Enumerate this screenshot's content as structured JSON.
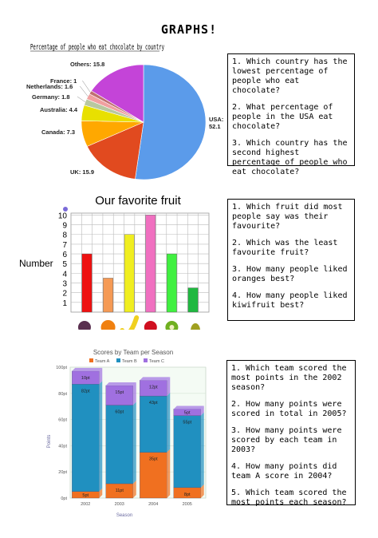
{
  "page": {
    "title": "GRAPHS!"
  },
  "chart_data": [
    {
      "type": "pie",
      "title": "Percentage of people who eat chocolate by country",
      "slices": [
        {
          "label": "USA",
          "value": 52.1,
          "display": "USA: 52.1",
          "color": "#5b9bea"
        },
        {
          "label": "UK",
          "value": 15.9,
          "display": "UK: 15.9",
          "color": "#e14a1f"
        },
        {
          "label": "Canada",
          "value": 7.3,
          "display": "Canada: 7.3",
          "color": "#ffa800"
        },
        {
          "label": "Australia",
          "value": 4.4,
          "display": "Australia: 4.4",
          "color": "#e8e000"
        },
        {
          "label": "Germany",
          "value": 1.8,
          "display": "Germany: 1.8",
          "color": "#b8c8a0"
        },
        {
          "label": "Netherlands",
          "value": 1.6,
          "display": "Netherlands: 1.6",
          "color": "#f0a0a0"
        },
        {
          "label": "France",
          "value": 1,
          "display": "France: 1",
          "color": "#c07070"
        },
        {
          "label": "Others",
          "value": 15.8,
          "display": "Others: 15.8",
          "color": "#c444d8"
        }
      ]
    },
    {
      "type": "bar",
      "title": "Our favorite fruit",
      "xlabel": "",
      "ylabel": "Number",
      "ylim": [
        0,
        10
      ],
      "yticks": [
        "1",
        "2",
        "3",
        "4",
        "5",
        "6",
        "7",
        "8",
        "9",
        "10"
      ],
      "categories": [
        "plum",
        "orange",
        "banana",
        "strawberry",
        "kiwifruit",
        "pear"
      ],
      "values": [
        6,
        3.5,
        8,
        10,
        6,
        2.5
      ],
      "colors": [
        "#ee1111",
        "#f59a55",
        "#f0ee20",
        "#f070c0",
        "#40f040",
        "#20b840"
      ]
    },
    {
      "type": "bar",
      "stacked": true,
      "title": "Scores by Team per Season",
      "xlabel": "Season",
      "ylabel": "Points",
      "ylim": [
        0,
        100
      ],
      "yticks": [
        "0pt",
        "20pt",
        "40pt",
        "60pt",
        "80pt",
        "100pt"
      ],
      "categories": [
        "2002",
        "2003",
        "2004",
        "2005"
      ],
      "series": [
        {
          "name": "Team A",
          "color": "#f07020",
          "values": [
            5,
            11,
            35,
            8
          ],
          "labels": [
            "5pt",
            "11pt",
            "35pt",
            "8pt"
          ]
        },
        {
          "name": "Team B",
          "color": "#2090c0",
          "values": [
            82,
            60,
            43,
            55
          ],
          "labels": [
            "82pt",
            "60pt",
            "43pt",
            "55pt"
          ]
        },
        {
          "name": "Team C",
          "color": "#a070e0",
          "values": [
            10,
            15,
            12,
            5
          ],
          "labels": [
            "10pt",
            "15pt",
            "12pt",
            "5pt"
          ]
        }
      ]
    }
  ],
  "questions": {
    "box1": [
      "1. Which country has the lowest percentage of people who eat chocolate?",
      "2. What percentage of people in the USA eat chocolate?",
      "3. Which country has the second highest percentage of people who eat chocolate?"
    ],
    "box2": [
      "1. Which fruit did most people say was their favourite?",
      "2. Which was the least favourite fruit?",
      "3. How many people liked oranges best?",
      "4. How many people liked kiwifruit best?"
    ],
    "box3": [
      "1. Which team scored the most points in the 2002 season?",
      "2. How many points were scored in total in 2005?",
      "3. How many points were scored by each team in 2003?",
      "4. How many points did team A score in  2004?",
      "5. Which team scored the most points each season?"
    ]
  }
}
